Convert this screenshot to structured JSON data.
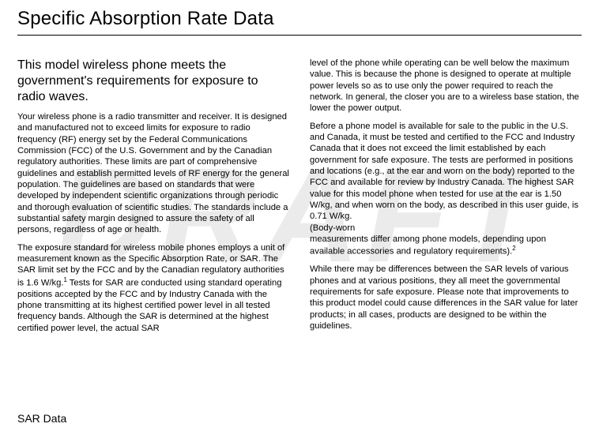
{
  "watermark": "DRAFT",
  "title": "Specific Absorption Rate Data",
  "footer": "SAR Data",
  "subhead": "This model wireless phone meets the government's requirements for exposure to radio waves.",
  "p1": "Your wireless phone is a radio transmitter and receiver. It is designed and manufactured not to exceed limits for exposure to radio frequency (RF) energy set by the Federal Communications Commission (FCC) of the U.S. Government and by the Canadian regulatory authorities. These limits are part of comprehensive guidelines and establish permitted levels of RF energy for the general population. The guidelines are based on standards that were developed by independent scientific organizations through periodic and thorough evaluation of scientific studies. The standards include a substantial safety margin designed to assure the safety of all persons, regardless of age or health.",
  "p2a": "The exposure standard for wireless mobile phones employs a unit of measurement known as the Specific Absorption Rate, or SAR. The SAR limit set by the FCC and by the Canadian regulatory authorities is 1.6 W/kg.",
  "sup1": "1",
  "p2b": " Tests for SAR are conducted using standard operating positions accepted by the FCC and by Industry Canada with the phone transmitting at its highest certified power level in all tested frequency bands. Although the SAR is determined at the highest certified power level, the actual SAR",
  "p3": "level of the phone while operating can be well below the maximum value. This is because the phone is designed to operate at multiple power levels so as to use only the power required to reach the network. In general, the closer you are to a wireless base station, the lower the power output.",
  "p4a": "Before a phone model is available for sale to the public in the U.S. and Canada, it must be tested and certified to the FCC and Industry Canada that it does not exceed the limit established by each government for safe exposure. The tests are performed in positions and locations (e.g., at the ear and worn on the body) reported to the FCC and available for review by Industry Canada. The highest SAR value for this model phone when tested for use at the ear is 1.50 W/kg, and when worn on the body, as described in this user guide, is 0.71 W/kg.",
  "p4b": " (Body-worn",
  "p4c": "measurements differ among phone models, depending upon available accessories and regulatory requirements).",
  "sup2": "2",
  "p5": "While there may be differences between the SAR levels of various phones and at various positions, they all meet the governmental requirements for safe exposure. Please note that improvements to this product model could cause differences in the SAR value for later products; in all cases, products are designed to be within the guidelines."
}
